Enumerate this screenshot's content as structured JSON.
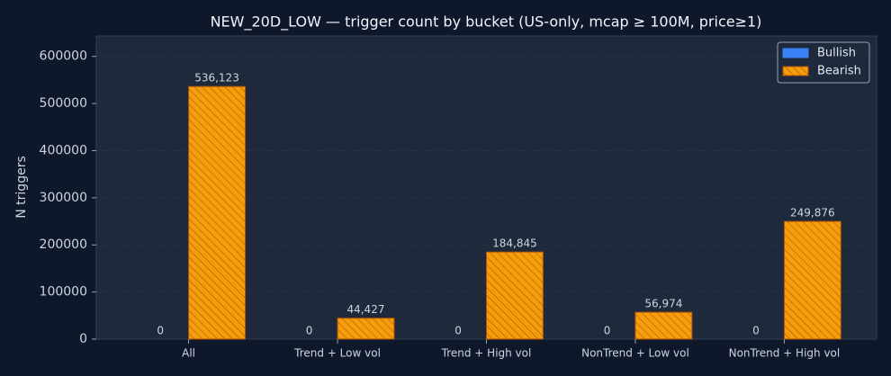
{
  "chart_data": {
    "type": "bar",
    "title": "NEW_20D_LOW — trigger count by bucket (US-only, mcap ≥ 100M, price≥1)",
    "y_label": "N triggers",
    "categories": [
      "All",
      "Trend + Low vol",
      "Trend + High vol",
      "NonTrend + Low vol",
      "NonTrend + High vol"
    ],
    "series": [
      {
        "name": "Bullish",
        "color": "#3b82f6",
        "values": [
          0,
          0,
          0,
          0,
          0
        ]
      },
      {
        "name": "Bearish",
        "color": "#f59e0b",
        "values": [
          536123,
          44427,
          184845,
          56974,
          249876
        ],
        "value_labels": [
          "536,123",
          "44,427",
          "184,845",
          "56,974",
          "249,876"
        ]
      }
    ],
    "ylim": [
      0,
      643348
    ],
    "yticks": [
      0,
      100000,
      200000,
      300000,
      400000,
      500000,
      600000
    ],
    "grid": true,
    "legend": "upper right"
  }
}
